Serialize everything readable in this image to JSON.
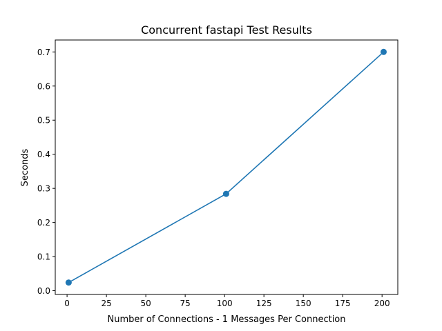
{
  "chart_data": {
    "type": "line",
    "title": "Concurrent fastapi Test Results",
    "xlabel": "Number of Connections - 1 Messages Per Connection",
    "ylabel": "Seconds",
    "xlim": [
      -7.5,
      210
    ],
    "ylim": [
      -0.011,
      0.735
    ],
    "xticks": [
      0,
      25,
      50,
      75,
      100,
      125,
      150,
      175,
      200
    ],
    "xtick_labels": [
      "0",
      "25",
      "50",
      "75",
      "100",
      "125",
      "150",
      "175",
      "200"
    ],
    "yticks": [
      0.0,
      0.1,
      0.2,
      0.3,
      0.4,
      0.5,
      0.6,
      0.7
    ],
    "ytick_labels": [
      "0.0",
      "0.1",
      "0.2",
      "0.3",
      "0.4",
      "0.5",
      "0.6",
      "0.7"
    ],
    "grid": false,
    "legend": "none",
    "series": [
      {
        "color": "#1f77b4",
        "marker": "circle",
        "x": [
          1,
          101,
          201
        ],
        "y": [
          0.024,
          0.284,
          0.7
        ]
      }
    ]
  }
}
